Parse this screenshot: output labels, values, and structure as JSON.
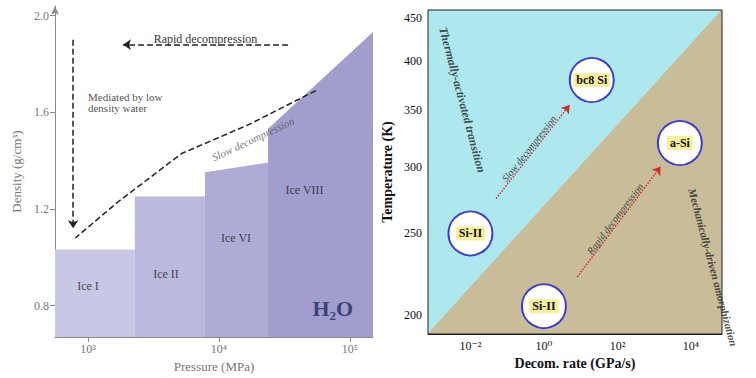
{
  "chart_data": [
    {
      "type": "area",
      "x_label": "Pressure (MPa)",
      "y_label": "Density (g/cm³)",
      "log": "x",
      "grid": false,
      "xlim": [
        560,
        150000
      ],
      "xticks": [
        {
          "value": 1000,
          "label": "10³"
        },
        {
          "value": 10000,
          "label": "10⁴"
        },
        {
          "value": 100000,
          "label": "10⁵"
        }
      ],
      "ylim": [
        0.67,
        2.04
      ],
      "yticks": [
        0.8,
        1.2,
        1.6,
        {
          "value": 2,
          "label": "2.0"
        }
      ],
      "series": [
        {
          "name": "Ice I",
          "color": "#c8c7e5",
          "x": [
            560,
            2280
          ],
          "values": [
            1.03,
            1.03
          ],
          "label_at": [
            1000,
            0.88
          ]
        },
        {
          "name": "Ice II",
          "color": "#bbb9de",
          "x": [
            2280,
            7820
          ],
          "values": [
            1.25,
            1.25
          ],
          "label_at": [
            3940,
            0.93
          ]
        },
        {
          "name": "Ice VI",
          "color": "#aeabd6",
          "x": [
            7820,
            23700
          ],
          "values": [
            1.35,
            1.39
          ],
          "label_at": [
            13500,
            1.08
          ]
        },
        {
          "name": "Ice VIII",
          "color": "#a19dcd",
          "x": [
            23700,
            150000
          ],
          "values": [
            1.53,
            1.93
          ],
          "label_at": [
            45000,
            1.28
          ]
        }
      ],
      "annotations": [
        {
          "text": "H₂O",
          "x": 74000,
          "y": 0.79
        },
        {
          "text": "Slow decompression",
          "x": 18200,
          "y": 1.49
        },
        {
          "text": "Mediated by low density water",
          "x": 1000,
          "y": 1.64
        }
      ],
      "arrows": [
        {
          "text": "Rapid decompression",
          "x": [
            33700,
            1850
          ],
          "y": [
            1.88,
            1.88
          ],
          "color": "#222222",
          "line_style": "dashed"
        },
        {
          "x": [
            770,
            770
          ],
          "y": [
            1.9,
            1.12
          ],
          "color": "#222222",
          "line_style": "dashed"
        },
        {
          "x": [
            55000,
            17000,
            5200,
            1700,
            800
          ],
          "y": [
            1.69,
            1.55,
            1.43,
            1.23,
            1.08
          ],
          "color": "#222222",
          "line_style": "dashed"
        }
      ]
    },
    {
      "type": "area",
      "x_label": "Decom. rate (GPa/s)",
      "y_label": "Temperature (K)",
      "log": true,
      "grid": false,
      "xlim": [
        0.0007,
        70000
      ],
      "xticks": [
        {
          "value": 0.01,
          "label": "10⁻²"
        },
        {
          "value": 1,
          "label": "10⁰"
        },
        {
          "value": 100,
          "label": "10²"
        },
        {
          "value": 10000,
          "label": "10⁴"
        }
      ],
      "ylim": [
        190,
        460
      ],
      "yticks": [
        200,
        250,
        300,
        350,
        400,
        450
      ],
      "series": [
        {
          "color": "#aee8ef",
          "x": [
            0.0007,
            70000
          ],
          "values": [
            460,
            460
          ]
        },
        {
          "color": "#c8bc99",
          "x": [
            0.0007,
            70000
          ],
          "values": [
            190,
            460
          ]
        }
      ],
      "points": [
        {
          "label": "Si-II",
          "x": 0.01,
          "y": 250
        },
        {
          "label": "Si-II",
          "x": 1,
          "y": 205
        },
        {
          "label": "bc8 Si",
          "x": 20,
          "y": 380
        },
        {
          "label": "a-Si",
          "x": 5000,
          "y": 320
        }
      ],
      "annotations": [
        {
          "text": "Thermally-activated transition",
          "x": 0.006,
          "y": 360
        },
        {
          "text": "Mechanically-driven amorphization",
          "x": 40000,
          "y": 228
        }
      ],
      "arrows": [
        {
          "text": "Slow decompression",
          "x": [
            0.05,
            5
          ],
          "y": [
            275,
            355
          ],
          "color": "#d62a2a",
          "line_style": "dotted"
        },
        {
          "text": "Rapid decompression",
          "x": [
            8,
            1500
          ],
          "y": [
            222,
            300
          ],
          "color": "#d62a2a",
          "line_style": "dotted"
        }
      ]
    }
  ]
}
